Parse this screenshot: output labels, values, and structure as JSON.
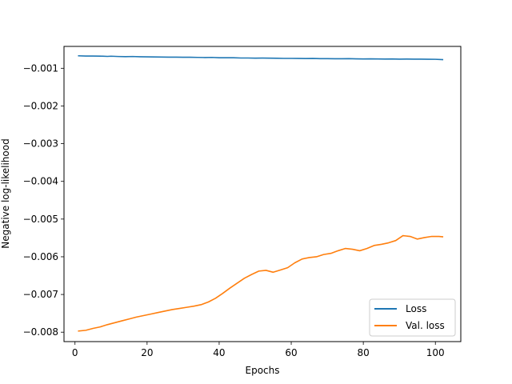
{
  "chart_data": {
    "type": "line",
    "title": "",
    "xlabel": "Epochs",
    "ylabel": "Negative log-likelihood",
    "xlim": [
      -3.05,
      107.05
    ],
    "ylim": [
      -0.00825,
      -0.00042
    ],
    "xticks": [
      0,
      20,
      40,
      60,
      80,
      100
    ],
    "xtick_labels": [
      "0",
      "20",
      "40",
      "60",
      "80",
      "100"
    ],
    "yticks": [
      -0.008,
      -0.007,
      -0.006,
      -0.005,
      -0.004,
      -0.003,
      -0.002,
      -0.001
    ],
    "ytick_labels": [
      "−0.008",
      "−0.007",
      "−0.006",
      "−0.005",
      "−0.004",
      "−0.003",
      "−0.002",
      "−0.001"
    ],
    "grid": false,
    "legend": {
      "placement": "lower-right"
    },
    "series": [
      {
        "name": "Loss",
        "color": "#1f77b4",
        "x": [
          1,
          3,
          5,
          7,
          9,
          10,
          12,
          14,
          16,
          18,
          20,
          22,
          24,
          26,
          28,
          30,
          32,
          34,
          36,
          38,
          40,
          42,
          44,
          46,
          48,
          50,
          52,
          54,
          56,
          58,
          60,
          62,
          64,
          66,
          68,
          70,
          72,
          74,
          76,
          78,
          80,
          82,
          84,
          86,
          88,
          90,
          92,
          94,
          96,
          98,
          100,
          102
        ],
        "y": [
          -0.00067,
          -0.000675,
          -0.000675,
          -0.000678,
          -0.000685,
          -0.00068,
          -0.000688,
          -0.000692,
          -0.000688,
          -0.000695,
          -0.000698,
          -0.0007,
          -0.000702,
          -0.000705,
          -0.000705,
          -0.000708,
          -0.000708,
          -0.000712,
          -0.000715,
          -0.000712,
          -0.00072,
          -0.000722,
          -0.000722,
          -0.000728,
          -0.000728,
          -0.000732,
          -0.00073,
          -0.000732,
          -0.000735,
          -0.000738,
          -0.000738,
          -0.00074,
          -0.000742,
          -0.00074,
          -0.000745,
          -0.000745,
          -0.000748,
          -0.000748,
          -0.000745,
          -0.00075,
          -0.000752,
          -0.00075,
          -0.000752,
          -0.000755,
          -0.000752,
          -0.000758,
          -0.000755,
          -0.000758,
          -0.000758,
          -0.00076,
          -0.000762,
          -0.00077
        ]
      },
      {
        "name": "Val. loss",
        "color": "#ff7f0e",
        "x": [
          1,
          3,
          5,
          7,
          9,
          11,
          13,
          15,
          17,
          19,
          21,
          23,
          25,
          27,
          29,
          31,
          33,
          35,
          37,
          39,
          41,
          43,
          45,
          47,
          49,
          51,
          53,
          55,
          57,
          59,
          61,
          63,
          65,
          67,
          69,
          71,
          73,
          75,
          77,
          79,
          81,
          83,
          85,
          87,
          89,
          91,
          93,
          95,
          97,
          99,
          101,
          102
        ],
        "y": [
          -0.00797,
          -0.00795,
          -0.0079,
          -0.00786,
          -0.0078,
          -0.00775,
          -0.0077,
          -0.00765,
          -0.0076,
          -0.00756,
          -0.00752,
          -0.00748,
          -0.00744,
          -0.0074,
          -0.00737,
          -0.00734,
          -0.00731,
          -0.00727,
          -0.0072,
          -0.0071,
          -0.00697,
          -0.00683,
          -0.0067,
          -0.00657,
          -0.00647,
          -0.00638,
          -0.00636,
          -0.00641,
          -0.00635,
          -0.00629,
          -0.00616,
          -0.00606,
          -0.00602,
          -0.006,
          -0.00594,
          -0.00591,
          -0.00584,
          -0.00578,
          -0.0058,
          -0.00584,
          -0.00578,
          -0.0057,
          -0.00567,
          -0.00563,
          -0.00557,
          -0.00544,
          -0.00546,
          -0.00553,
          -0.00549,
          -0.00546,
          -0.00546,
          -0.00547
        ]
      }
    ]
  }
}
